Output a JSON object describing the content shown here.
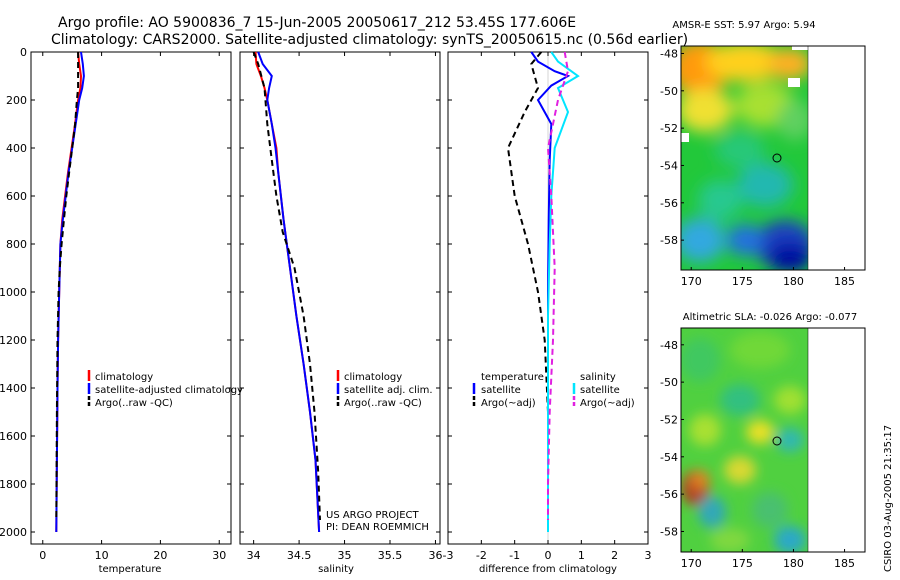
{
  "header": {
    "title_line1": "Argo profile: AO 5900836_7 15-Jun-2005 20050617_212 53.45S 177.606E",
    "title_line2": "Climatology: CARS2000. Satellite-adjusted climatology: synTS_20050615.nc (0.56d earlier)"
  },
  "colors": {
    "climatology": "#ff0000",
    "satellite": "#0000ff",
    "argo": "#000000",
    "satellite_salinity": "#00e5ff",
    "argo_salinity": "#e020e0"
  },
  "annotation": {
    "line1": "US ARGO PROJECT",
    "line2": "PI: DEAN ROEMMICH"
  },
  "credit": "CSIRO 03-Aug-2005 21:35:17",
  "chart_data": [
    {
      "type": "line",
      "name": "temperature-profile",
      "xlabel": "temperature",
      "ylabel": "",
      "xlim": [
        -2,
        32
      ],
      "ylim": [
        2050,
        0
      ],
      "xticks": [
        0,
        10,
        20,
        30
      ],
      "yticks": [
        0,
        200,
        400,
        600,
        800,
        1000,
        1200,
        1400,
        1600,
        1800,
        2000
      ],
      "legend": [
        "climatology",
        "satellite-adjusted climatology",
        "Argo(..raw -QC)"
      ],
      "series": [
        {
          "name": "climatology",
          "color": "#ff0000",
          "dash": "",
          "x": [
            6.0,
            6.2,
            6.5,
            6.4,
            6.0,
            5.5,
            4.9,
            4.3,
            3.8,
            3.3,
            3.0,
            2.8,
            2.6,
            2.5,
            2.4,
            2.3
          ],
          "y": [
            0,
            50,
            100,
            150,
            200,
            300,
            400,
            500,
            600,
            700,
            800,
            1000,
            1200,
            1400,
            1700,
            2000
          ]
        },
        {
          "name": "satellite-adjusted climatology",
          "color": "#0000ff",
          "dash": "",
          "x": [
            6.5,
            6.8,
            7.0,
            6.7,
            6.2,
            5.6,
            5.0,
            4.4,
            3.9,
            3.4,
            3.0,
            2.8,
            2.6,
            2.5,
            2.4,
            2.3
          ],
          "y": [
            0,
            50,
            100,
            150,
            200,
            300,
            400,
            500,
            600,
            700,
            800,
            1000,
            1200,
            1400,
            1700,
            2000
          ]
        },
        {
          "name": "Argo(..raw -QC)",
          "color": "#000000",
          "dash": "6,4",
          "x": [
            6.0,
            6.0,
            6.0,
            5.8,
            5.5,
            5.0,
            4.5,
            4.0,
            3.6,
            3.2,
            2.9,
            2.7,
            2.5,
            2.4,
            2.3
          ],
          "y": [
            0,
            50,
            150,
            200,
            300,
            400,
            500,
            600,
            700,
            800,
            900,
            1000,
            1200,
            1500,
            1950
          ]
        }
      ]
    },
    {
      "type": "line",
      "name": "salinity-profile",
      "xlabel": "salinity",
      "xlim": [
        33.85,
        36.05
      ],
      "ylim": [
        2050,
        0
      ],
      "xticks": [
        34,
        34.5,
        35,
        35.5,
        36
      ],
      "legend": [
        "climatology",
        "satellite adj. clim.",
        "Argo(..raw -QC)"
      ],
      "series": [
        {
          "name": "climatology",
          "color": "#ff0000",
          "dash": "",
          "x": [
            34.02,
            34.03,
            34.08,
            34.12,
            34.15,
            34.2,
            34.25,
            34.27,
            34.33,
            34.4,
            34.47,
            34.55,
            34.62,
            34.68,
            34.72
          ],
          "y": [
            0,
            50,
            100,
            150,
            200,
            300,
            400,
            500,
            700,
            900,
            1100,
            1300,
            1500,
            1700,
            2000
          ]
        },
        {
          "name": "satellite adj. clim.",
          "color": "#0000ff",
          "dash": "",
          "x": [
            34.05,
            34.1,
            34.2,
            34.17,
            34.15,
            34.2,
            34.24,
            34.27,
            34.33,
            34.4,
            34.47,
            34.55,
            34.62,
            34.68,
            34.72
          ],
          "y": [
            0,
            50,
            100,
            150,
            200,
            300,
            400,
            500,
            700,
            900,
            1100,
            1300,
            1500,
            1700,
            2000
          ]
        },
        {
          "name": "Argo(..raw -QC)",
          "color": "#000000",
          "dash": "6,4",
          "x": [
            34.0,
            34.05,
            34.12,
            34.15,
            34.2,
            34.25,
            34.32,
            34.45,
            34.55,
            34.62,
            34.67,
            34.71,
            34.73
          ],
          "y": [
            0,
            50,
            150,
            300,
            450,
            600,
            750,
            900,
            1100,
            1300,
            1500,
            1750,
            1950
          ]
        }
      ]
    },
    {
      "type": "line",
      "name": "difference-profile",
      "xlabel": "difference from climatology",
      "xlim": [
        -3,
        3
      ],
      "ylim": [
        2050,
        0
      ],
      "xticks": [
        -3,
        -2,
        -1,
        0,
        1,
        2,
        3
      ],
      "legend_temperature": {
        "heading": "temperature",
        "entries": [
          "satellite",
          "Argo(~adj)"
        ]
      },
      "legend_salinity": {
        "heading": "salinity",
        "entries": [
          "satellite",
          "Argo(~adj)"
        ]
      },
      "series": [
        {
          "name": "temperature satellite",
          "color": "#0000ff",
          "dash": "",
          "x": [
            -0.5,
            -0.3,
            0.2,
            0.6,
            0.1,
            -0.3,
            0.1,
            0.05,
            0.02,
            0.0,
            0.0
          ],
          "y": [
            0,
            40,
            80,
            100,
            140,
            200,
            300,
            450,
            700,
            1000,
            2000
          ]
        },
        {
          "name": "temperature Argo(~adj)",
          "color": "#000000",
          "dash": "6,4",
          "x": [
            -0.2,
            -0.5,
            -0.3,
            -0.7,
            -1.2,
            -1.0,
            -0.6,
            -0.3,
            -0.1,
            0.0,
            0.0
          ],
          "y": [
            0,
            50,
            150,
            250,
            400,
            600,
            800,
            1000,
            1200,
            1500,
            1800
          ]
        },
        {
          "name": "salinity satellite",
          "color": "#00e5ff",
          "dash": "",
          "x": [
            0.1,
            0.3,
            0.7,
            0.9,
            0.3,
            0.6,
            0.2,
            0.1,
            0.05,
            0.0,
            0.0
          ],
          "y": [
            0,
            40,
            80,
            100,
            150,
            250,
            400,
            600,
            800,
            1100,
            2000
          ]
        },
        {
          "name": "salinity Argo(~adj)",
          "color": "#e020e0",
          "dash": "6,4",
          "x": [
            0.5,
            0.6,
            0.3,
            0.0,
            0.1,
            0.2,
            0.15,
            0.05,
            0.0,
            0.0
          ],
          "y": [
            0,
            80,
            200,
            400,
            600,
            900,
            1200,
            1500,
            1800,
            1950
          ]
        }
      ]
    },
    {
      "type": "heatmap",
      "name": "sst-map",
      "title": "AMSR-E SST: 5.97 Argo: 5.94",
      "xticks": [
        170,
        175,
        180,
        185
      ],
      "yticks": [
        -48,
        -50,
        -52,
        -54,
        -56,
        -58
      ],
      "xlim": [
        169,
        187
      ],
      "ylim": [
        -59.6,
        -47.6
      ],
      "marker": {
        "lon": 177.6,
        "lat": -53.45
      }
    },
    {
      "type": "heatmap",
      "name": "sla-map",
      "title": "Altimetric SLA: -0.026 Argo: -0.077",
      "xticks": [
        170,
        175,
        180,
        185
      ],
      "yticks": [
        -48,
        -50,
        -52,
        -54,
        -56,
        -58
      ],
      "xlim": [
        169,
        187
      ],
      "ylim": [
        -59.1,
        -47.1
      ],
      "marker": {
        "lon": 177.6,
        "lat": -53.45
      }
    }
  ]
}
